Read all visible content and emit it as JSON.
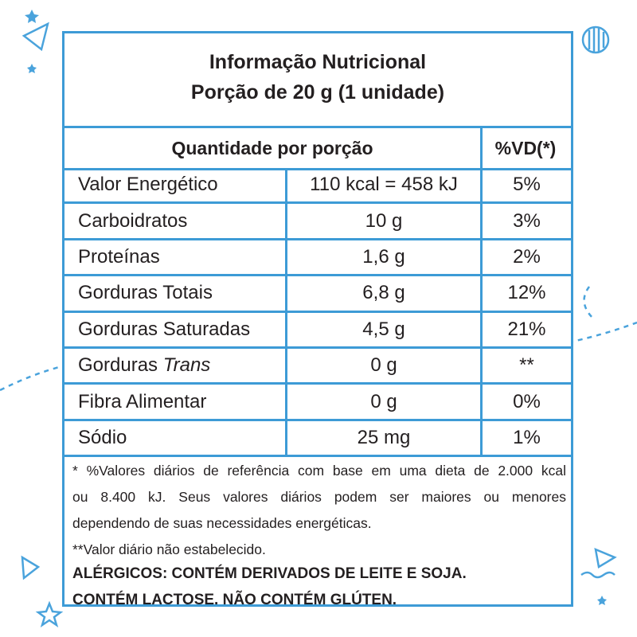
{
  "header": {
    "title": "Informação Nutricional",
    "subtitle": "Porção de 20 g (1 unidade)"
  },
  "table": {
    "columns": [
      "Quantidade por porção",
      "%VD(*)"
    ],
    "rows": [
      [
        "Valor Energético",
        "110 kcal = 458 kJ",
        "5%"
      ],
      [
        "Carboidratos",
        "10 g",
        "3%"
      ],
      [
        "Proteínas",
        "1,6 g",
        "2%"
      ],
      [
        "Gorduras Totais",
        "6,8 g",
        "12%"
      ],
      [
        "Gorduras Saturadas",
        "4,5 g",
        "21%"
      ],
      [
        {
          "text": "Gorduras",
          "italic": "Trans"
        },
        "0 g",
        "**"
      ],
      [
        "Fibra Alimentar",
        "0 g",
        "0%"
      ],
      [
        "Sódio",
        "25 mg",
        "1%"
      ]
    ]
  },
  "footnotes": {
    "lines": [
      "* %Valores diários de referência com base em uma dieta de 2.000 kcal",
      "ou 8.400 kJ. Seus valores diários podem ser maiores ou menores",
      "dependendo de suas necessidades energéticas.",
      "**Valor diário não estabelecido."
    ],
    "allergens": [
      "ALÉRGICOS: CONTÉM DERIVADOS DE LEITE E SOJA.",
      "CONTÉM LACTOSE. NÃO CONTÉM GLÚTEN."
    ]
  }
}
